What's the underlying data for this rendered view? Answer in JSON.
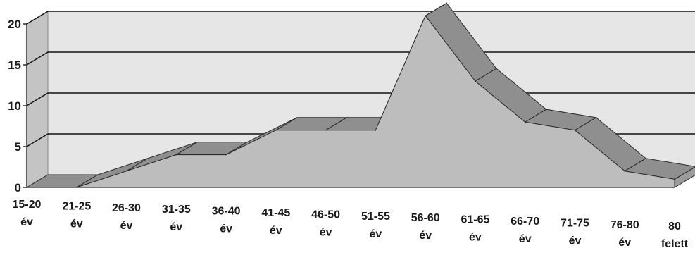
{
  "chart_data": {
    "type": "area",
    "categories": [
      [
        "15-20",
        "év"
      ],
      [
        "21-25",
        "év"
      ],
      [
        "26-30",
        "év"
      ],
      [
        "31-35",
        "év"
      ],
      [
        "36-40",
        "év"
      ],
      [
        "41-45",
        "év"
      ],
      [
        "46-50",
        "év"
      ],
      [
        "51-55",
        "év"
      ],
      [
        "56-60",
        "év"
      ],
      [
        "61-65",
        "év"
      ],
      [
        "66-70",
        "év"
      ],
      [
        "71-75",
        "év"
      ],
      [
        "76-80",
        "év"
      ],
      [
        "80",
        "felett"
      ]
    ],
    "values": [
      0,
      0,
      2,
      4,
      4,
      7,
      7,
      7,
      21,
      13,
      8,
      7,
      2,
      1
    ],
    "y_ticks": [
      "0",
      "5",
      "10",
      "15",
      "20"
    ],
    "ylim": [
      0,
      20
    ],
    "grid": true,
    "three_d": true,
    "legend": "none",
    "colors": {
      "back_wall": "#e6e6e6",
      "side_wall": "#c4c4c4",
      "floor": "#b0b0b0",
      "area_front": "#bdbdbd",
      "area_top": "#8f8f8f",
      "outline": "#2a2a2a",
      "grid": "#111111"
    }
  }
}
